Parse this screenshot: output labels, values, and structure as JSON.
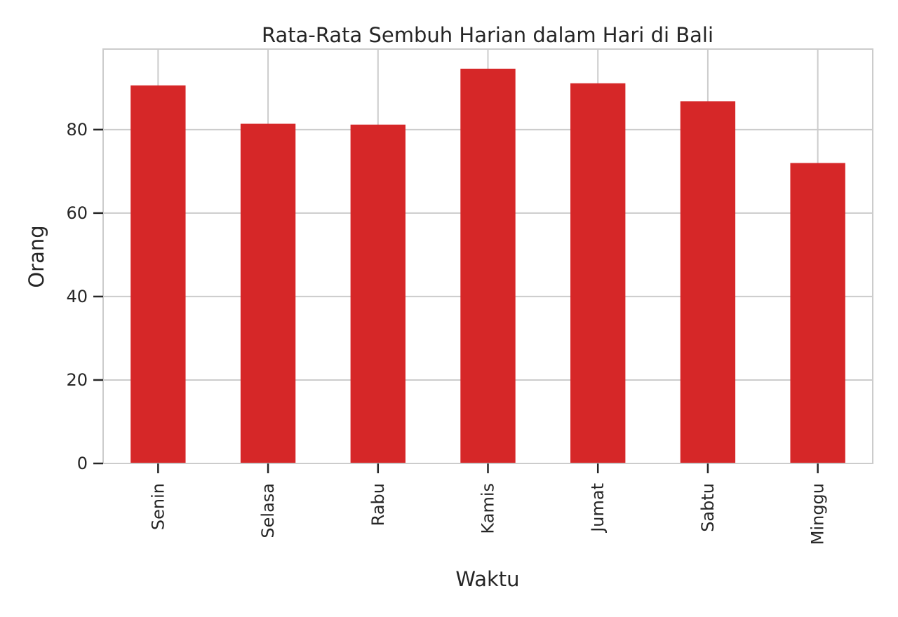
{
  "chart_data": {
    "type": "bar",
    "title": "Rata-Rata Sembuh Harian dalam Hari di Bali",
    "xlabel": "Waktu",
    "ylabel": "Orang",
    "categories": [
      "Senin",
      "Selasa",
      "Rabu",
      "Kamis",
      "Jumat",
      "Sabtu",
      "Minggu"
    ],
    "values": [
      90.6,
      81.4,
      81.2,
      94.6,
      91.1,
      86.8,
      72.0
    ],
    "ylim": [
      0,
      99.3
    ],
    "yticks": [
      0,
      20,
      40,
      60,
      80
    ],
    "grid": true,
    "bar_color": "#d62728",
    "grid_color": "#cccccc"
  }
}
